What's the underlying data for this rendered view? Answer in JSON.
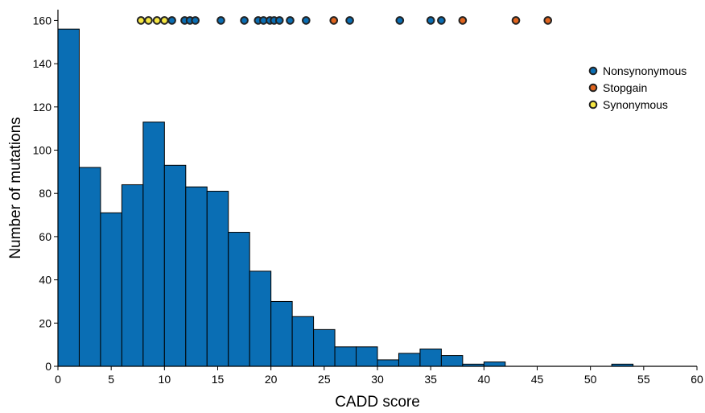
{
  "chart_data": {
    "type": "bar",
    "subtype": "histogram",
    "xlabel": "CADD score",
    "ylabel": "Number of mutations",
    "xlim": [
      0,
      60
    ],
    "ylim": [
      0,
      165
    ],
    "xticks": [
      0,
      5,
      10,
      15,
      20,
      25,
      30,
      35,
      40,
      45,
      50,
      55,
      60
    ],
    "yticks": [
      0,
      20,
      40,
      60,
      80,
      100,
      120,
      140,
      160
    ],
    "bin_width": 2,
    "bin_starts": [
      0,
      2,
      4,
      6,
      8,
      10,
      12,
      14,
      16,
      18,
      20,
      22,
      24,
      26,
      28,
      30,
      32,
      34,
      36,
      38,
      40,
      42,
      44,
      46,
      48,
      50,
      52,
      54,
      56,
      58
    ],
    "values": [
      156,
      92,
      71,
      84,
      113,
      93,
      83,
      81,
      62,
      44,
      30,
      23,
      17,
      9,
      9,
      3,
      6,
      8,
      5,
      1,
      2,
      0,
      0,
      0,
      0,
      0,
      1,
      0,
      0,
      0
    ],
    "bar_color": "#0a6eb4",
    "grid": false,
    "legend_position": "top-right",
    "legend": [
      {
        "label": "Nonsynonymous",
        "color": "#0a6eb4"
      },
      {
        "label": "Stopgain",
        "color": "#e0641e"
      },
      {
        "label": "Synonymous",
        "color": "#f5e642"
      }
    ],
    "points_y": 160,
    "points": [
      {
        "x": 7.8,
        "type": "Synonymous"
      },
      {
        "x": 8.5,
        "type": "Synonymous"
      },
      {
        "x": 9.3,
        "type": "Synonymous"
      },
      {
        "x": 10.0,
        "type": "Synonymous"
      },
      {
        "x": 10.7,
        "type": "Nonsynonymous"
      },
      {
        "x": 11.9,
        "type": "Nonsynonymous"
      },
      {
        "x": 12.4,
        "type": "Nonsynonymous"
      },
      {
        "x": 12.9,
        "type": "Nonsynonymous"
      },
      {
        "x": 15.3,
        "type": "Nonsynonymous"
      },
      {
        "x": 17.5,
        "type": "Nonsynonymous"
      },
      {
        "x": 18.8,
        "type": "Nonsynonymous"
      },
      {
        "x": 19.3,
        "type": "Nonsynonymous"
      },
      {
        "x": 19.9,
        "type": "Nonsynonymous"
      },
      {
        "x": 20.3,
        "type": "Nonsynonymous"
      },
      {
        "x": 20.8,
        "type": "Nonsynonymous"
      },
      {
        "x": 21.8,
        "type": "Nonsynonymous"
      },
      {
        "x": 23.3,
        "type": "Nonsynonymous"
      },
      {
        "x": 25.9,
        "type": "Stopgain"
      },
      {
        "x": 27.4,
        "type": "Nonsynonymous"
      },
      {
        "x": 32.1,
        "type": "Nonsynonymous"
      },
      {
        "x": 35.0,
        "type": "Nonsynonymous"
      },
      {
        "x": 36.0,
        "type": "Nonsynonymous"
      },
      {
        "x": 38.0,
        "type": "Stopgain"
      },
      {
        "x": 43.0,
        "type": "Stopgain"
      },
      {
        "x": 46.0,
        "type": "Stopgain"
      }
    ]
  }
}
